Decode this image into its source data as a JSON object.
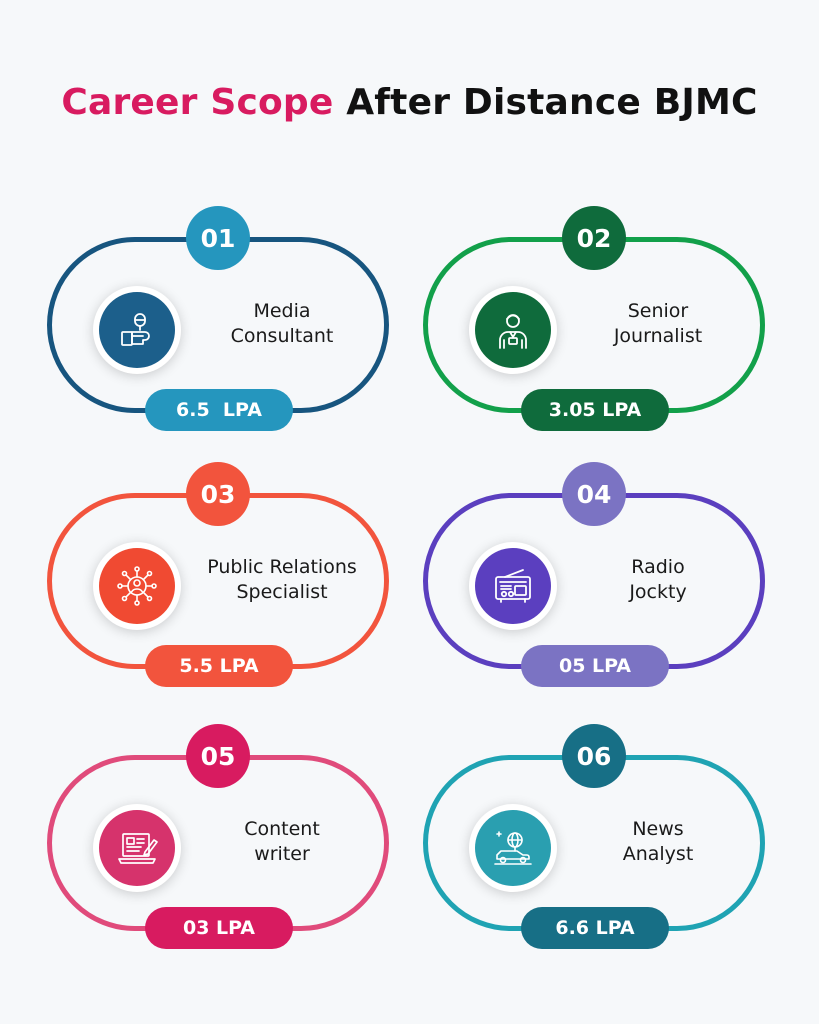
{
  "title": {
    "accent": "Career Scope",
    "rest": "After Distance BJMC",
    "accent_color": "#d81b60"
  },
  "careers": [
    {
      "number": "01",
      "title_line1": "Media",
      "title_line2": "Consultant",
      "salary": "6.5  LPA",
      "icon": "interview-microphone-icon",
      "ring_color": "#17557f",
      "number_color": "#2596be",
      "icon_color": "#1c5f8b",
      "pill_color": "#2596be"
    },
    {
      "number": "02",
      "title_line1": "Senior",
      "title_line2": "Journalist",
      "salary": "3.05 LPA",
      "icon": "journalist-person-icon",
      "ring_color": "#12a04a",
      "number_color": "#0f6b3c",
      "icon_color": "#0f6b3c",
      "pill_color": "#0f6b3c"
    },
    {
      "number": "03",
      "title_line1": "Public Relations",
      "title_line2": "Specialist",
      "salary": "5.5 LPA",
      "icon": "network-person-icon",
      "ring_color": "#f2543d",
      "number_color": "#f2543d",
      "icon_color": "#f04a32",
      "pill_color": "#f2543d"
    },
    {
      "number": "04",
      "title_line1": "Radio",
      "title_line2": "Jockty",
      "salary": "05 LPA",
      "icon": "radio-icon",
      "ring_color": "#5b3fbf",
      "number_color": "#7b73c3",
      "icon_color": "#5b3fbf",
      "pill_color": "#7b73c3"
    },
    {
      "number": "05",
      "title_line1": "Content",
      "title_line2": "writer",
      "salary": "03 LPA",
      "icon": "laptop-document-pen-icon",
      "ring_color": "#e04b7b",
      "number_color": "#d81b60",
      "icon_color": "#d6336c",
      "pill_color": "#d81b60"
    },
    {
      "number": "06",
      "title_line1": "News",
      "title_line2": "Analyst",
      "salary": "6.6 LPA",
      "icon": "globe-car-icon",
      "ring_color": "#1fa3b3",
      "number_color": "#176f86",
      "icon_color": "#2a9fb0",
      "pill_color": "#176f86"
    }
  ]
}
